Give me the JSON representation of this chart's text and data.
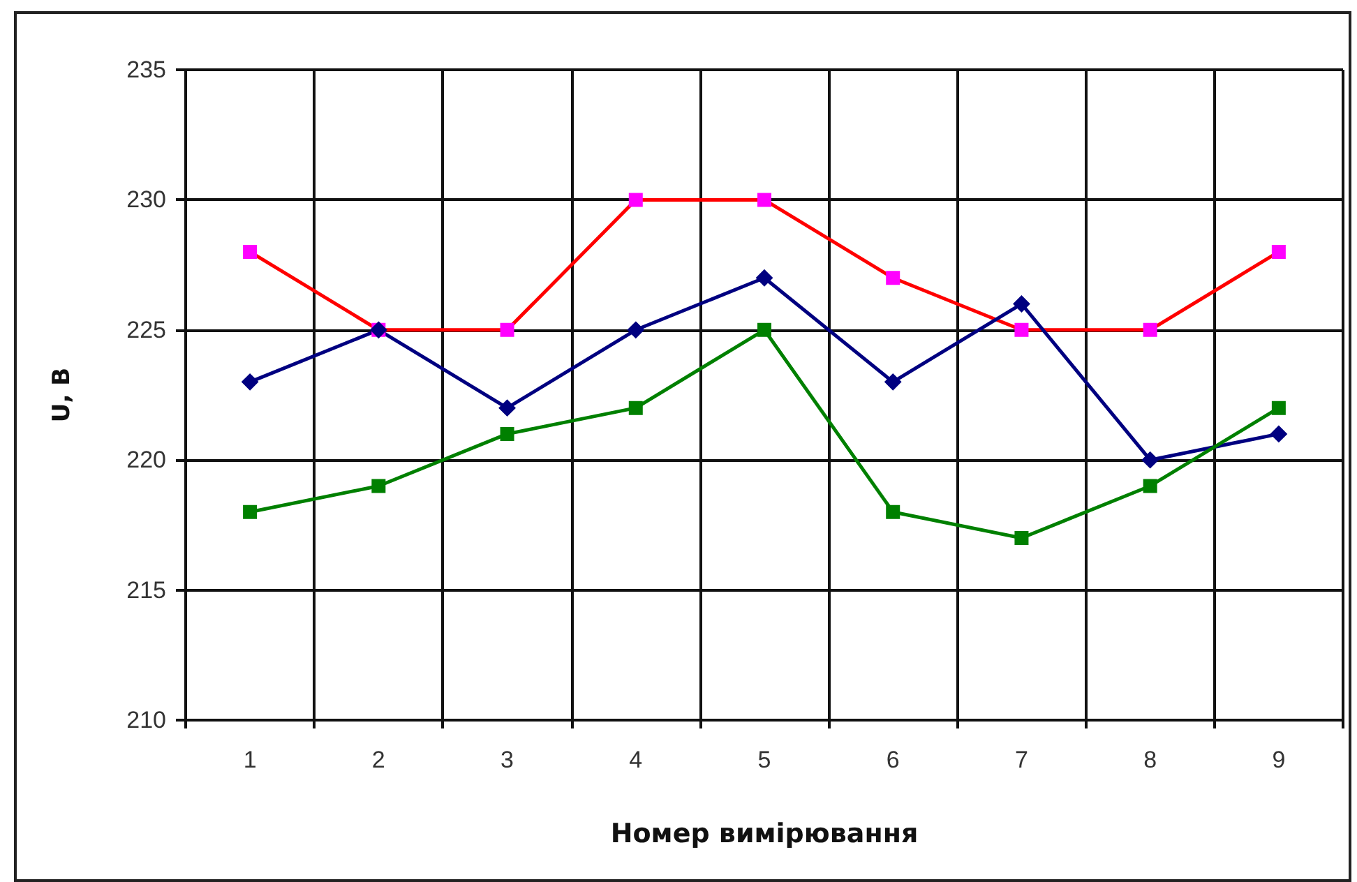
{
  "chart_data": {
    "type": "line",
    "xlabel": "Номер вимірювання",
    "ylabel": "U, B",
    "categories": [
      "1",
      "2",
      "3",
      "4",
      "5",
      "6",
      "7",
      "8",
      "9"
    ],
    "series": [
      {
        "color": "#ff0000",
        "colors": [
          "#ff00ff",
          "#ff00ff",
          "#ff00ff",
          "#ff00ff",
          "#ff00ff",
          "#ff00ff",
          "#ff00ff",
          "#ff00ff",
          "#ff00ff"
        ],
        "marker": "square",
        "values": [
          228,
          225,
          225,
          230,
          230,
          227,
          225,
          225,
          228
        ]
      },
      {
        "color": "#000080",
        "marker": "diamond",
        "values": [
          223,
          225,
          222,
          225,
          227,
          223,
          226,
          220,
          221
        ]
      },
      {
        "color": "#008000",
        "marker": "square",
        "values": [
          218,
          219,
          221,
          222,
          225,
          218,
          217,
          219,
          222
        ]
      }
    ],
    "ylim": [
      210,
      235
    ],
    "yticks": [
      210,
      215,
      220,
      225,
      230,
      235
    ],
    "grid": true,
    "line_style": "solid"
  }
}
